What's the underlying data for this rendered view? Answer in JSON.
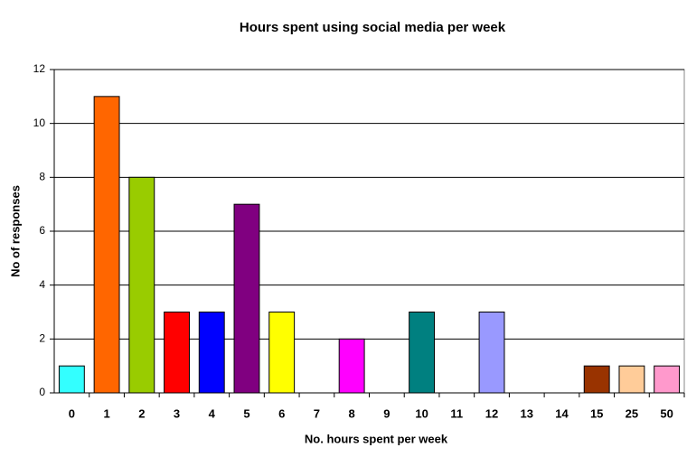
{
  "chart_data": {
    "type": "bar",
    "title": "Hours spent using social media per week",
    "x_label": "No. hours spent per week",
    "y_label": "No of responses",
    "categories": [
      "0",
      "1",
      "2",
      "3",
      "4",
      "5",
      "6",
      "7",
      "8",
      "9",
      "10",
      "11",
      "12",
      "13",
      "14",
      "15",
      "25",
      "50"
    ],
    "values": [
      1,
      11,
      8,
      3,
      3,
      7,
      3,
      0,
      2,
      0,
      3,
      0,
      3,
      0,
      0,
      1,
      1,
      1
    ],
    "colors": [
      "#33ffff",
      "#ff6600",
      "#99cc00",
      "#ff0000",
      "#0000ff",
      "#800080",
      "#ffff00",
      "#ffffff",
      "#ff00ff",
      "#ffffff",
      "#008080",
      "#ffffff",
      "#9999ff",
      "#ffffff",
      "#ffffff",
      "#993300",
      "#ffcc99",
      "#ff99cc"
    ],
    "ylim": [
      0,
      12
    ],
    "yticks": [
      0,
      2,
      4,
      6,
      8,
      10,
      12
    ],
    "grid": true
  }
}
